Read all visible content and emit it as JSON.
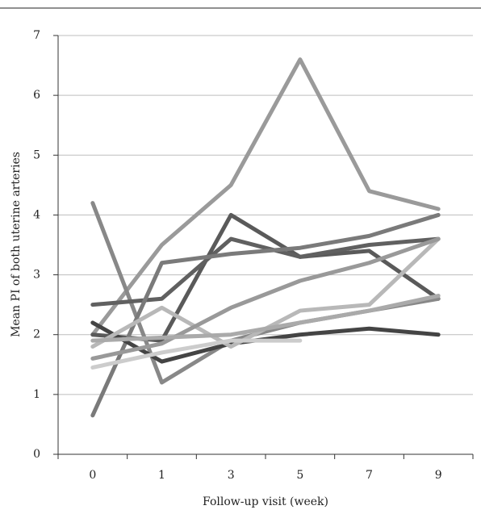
{
  "chart_data": {
    "type": "line",
    "x_label": "Follow-up visit (week)",
    "y_label": "Mean PI  of both uterine arteries",
    "categories": [
      "0",
      "1",
      "3",
      "5",
      "7",
      "9"
    ],
    "ylim": [
      0,
      7
    ],
    "yticks": [
      0,
      1,
      2,
      3,
      4,
      5,
      6,
      7
    ],
    "grid": true,
    "series": [
      {
        "color": "#9a9a9a",
        "values": [
          2.0,
          3.5,
          4.5,
          6.6,
          4.4,
          4.1
        ]
      },
      {
        "color": "#5a5a5a",
        "values": [
          2.0,
          1.9,
          4.0,
          3.3,
          3.4,
          2.6
        ]
      },
      {
        "color": "#888888",
        "values": [
          4.2,
          1.2,
          1.9,
          2.2,
          2.4,
          2.6
        ]
      },
      {
        "color": "#606060",
        "values": [
          2.5,
          2.6,
          3.6,
          3.3,
          3.5,
          3.6
        ]
      },
      {
        "color": "#7a7a7a",
        "values": [
          0.65,
          3.2,
          3.35,
          3.45,
          3.65,
          4.0
        ]
      },
      {
        "color": "#444444",
        "values": [
          2.2,
          1.55,
          1.85,
          2.0,
          2.1,
          2.0
        ]
      },
      {
        "color": "#b8b8b8",
        "values": [
          1.8,
          2.45,
          1.8,
          2.4,
          2.5,
          3.6
        ]
      },
      {
        "color": "#999999",
        "values": [
          1.6,
          1.85,
          2.45,
          2.9,
          3.2,
          3.6
        ]
      },
      {
        "color": "#cccccc",
        "values": [
          1.45,
          1.7,
          1.9,
          1.9,
          null,
          null
        ]
      },
      {
        "color": "#aaaaaa",
        "values": [
          1.9,
          1.95,
          2.0,
          2.2,
          2.4,
          2.65
        ]
      }
    ]
  }
}
